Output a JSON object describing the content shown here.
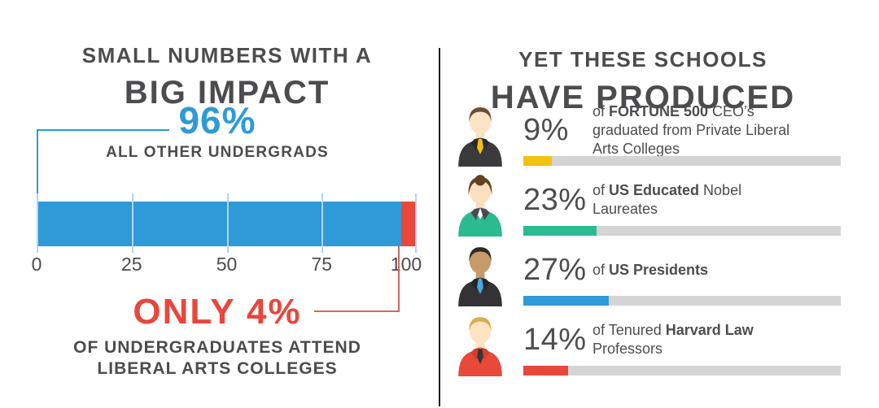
{
  "left": {
    "title_line1": "SMALL NUMBERS WITH A",
    "title_line2": "BIG IMPACT",
    "big_value": "96%",
    "big_label": "ALL OTHER UNDERGRADS",
    "small_value": "ONLY 4%",
    "small_label_line1": "OF UNDERGRADUATES ATTEND",
    "small_label_line2": "LIBERAL ARTS COLLEGES"
  },
  "right": {
    "title_line1": "YET THESE SCHOOLS",
    "title_line2": "HAVE PRODUCED",
    "rows": [
      {
        "value": "9%",
        "desc_pre": "of ",
        "desc_bold": "FORTUNE 500",
        "desc_post": " CEO’s graduated from Private Liberal Arts Colleges",
        "avatar_name": "fortune-500-ceo-avatar",
        "avatar": {
          "type": "male",
          "hair": "#6d4c35",
          "skin": "#fce3c2",
          "jacket": "#3b3b3d",
          "lapel": "#2a2a2c",
          "shirt": "#ffffff",
          "tie": "#f2c211"
        }
      },
      {
        "value": "23%",
        "desc_pre": "of ",
        "desc_bold": "US Educated",
        "desc_post": " Nobel Laureates",
        "avatar_name": "nobel-laureate-avatar",
        "avatar": {
          "type": "female",
          "hair": "#63401f",
          "skin": "#fbe0c0",
          "jacket": "#2bbb90",
          "lapel": "#4b4b4d",
          "shirt": "#ffffff",
          "tie": ""
        }
      },
      {
        "value": "27%",
        "desc_pre": "of ",
        "desc_bold": "US Presidents",
        "desc_post": "",
        "avatar_name": "us-president-avatar",
        "avatar": {
          "type": "male",
          "hair": "#2d2a28",
          "skin": "#c79b69",
          "jacket": "#333335",
          "lapel": "#242426",
          "shirt": "#ffffff",
          "tie": "#4aa8e0"
        }
      },
      {
        "value": "14%",
        "desc_pre": "of Tenured ",
        "desc_bold": "Harvard Law",
        "desc_post": " Professors",
        "avatar_name": "harvard-law-professor-avatar",
        "avatar": {
          "type": "male",
          "hair": "#d8ae4e",
          "skin": "#fce3c2",
          "jacket": "#e8493a",
          "lapel": "#d63d2e",
          "shirt": "#ffffff",
          "tie": "#3b3430"
        }
      }
    ]
  },
  "chart_data": [
    {
      "type": "bar",
      "orientation": "horizontal",
      "stacked": true,
      "title": "SMALL NUMBERS WITH A BIG IMPACT",
      "categories": [
        "Undergraduates"
      ],
      "series": [
        {
          "name": "All other undergrads",
          "values": [
            96
          ],
          "color": "#2e9ad7"
        },
        {
          "name": "Undergraduates attending liberal arts colleges",
          "values": [
            4
          ],
          "color": "#e8473c"
        }
      ],
      "xlim": [
        0,
        100
      ],
      "xticks": [
        0,
        25,
        50,
        75,
        100
      ],
      "grid": true,
      "legend": false,
      "annotations": [
        "96% ALL OTHER UNDERGRADS",
        "ONLY 4% OF UNDERGRADUATES ATTEND LIBERAL ARTS COLLEGES"
      ]
    },
    {
      "type": "bar",
      "orientation": "horizontal",
      "title": "YET THESE SCHOOLS HAVE PRODUCED",
      "categories": [
        "Fortune 500 CEO’s graduated from Private Liberal Arts Colleges",
        "US Educated Nobel Laureates",
        "US Presidents",
        "Tenured Harvard Law Professors"
      ],
      "values": [
        9,
        23,
        27,
        14
      ],
      "bar_colors": [
        "#f2c211",
        "#2bbb90",
        "#2e9ad7",
        "#e8473c"
      ],
      "track_color": "#d4d4d4",
      "xlim": [
        0,
        100
      ],
      "legend": false
    }
  ],
  "colors": {
    "accent_blue": "#2e9ad7",
    "accent_red": "#e8473c",
    "text_dark": "#4c4c4e",
    "track_gray": "#d4d4d4",
    "divider": "#1e1e20"
  }
}
